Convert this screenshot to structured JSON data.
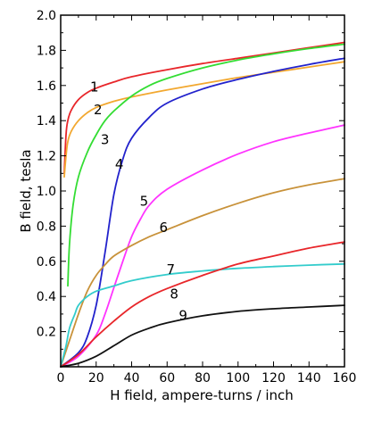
{
  "chart_data": {
    "type": "line",
    "title": "",
    "xlabel": "H field, ampere-turns / inch",
    "ylabel": "B field, tesla",
    "xlim": [
      0,
      160
    ],
    "ylim": [
      0,
      2.0
    ],
    "x_ticks": [
      0,
      20,
      40,
      60,
      80,
      100,
      120,
      140,
      160
    ],
    "x_tick_labels": [
      "0",
      "20",
      "40",
      "60",
      "80",
      "100",
      "120",
      "140",
      "160"
    ],
    "y_ticks": [
      0.2,
      0.4,
      0.6,
      0.8,
      1.0,
      1.2,
      1.4,
      1.6,
      1.8,
      2.0
    ],
    "y_tick_labels": [
      "0.2",
      "0.4",
      "0.6",
      "0.8",
      "1.0",
      "1.2",
      "1.4",
      "1.6",
      "1.8",
      "2.0"
    ],
    "grid": false,
    "legend": "none",
    "series": [
      {
        "label": "1",
        "color": "#e8262a",
        "label_pos": [
          19,
          1.59
        ],
        "points": [
          [
            2,
            1.1
          ],
          [
            3,
            1.32
          ],
          [
            4,
            1.4
          ],
          [
            6,
            1.46
          ],
          [
            10,
            1.52
          ],
          [
            15,
            1.56
          ],
          [
            20,
            1.585
          ],
          [
            30,
            1.62
          ],
          [
            40,
            1.65
          ],
          [
            60,
            1.69
          ],
          [
            80,
            1.725
          ],
          [
            100,
            1.755
          ],
          [
            120,
            1.785
          ],
          [
            140,
            1.815
          ],
          [
            160,
            1.845
          ]
        ]
      },
      {
        "label": "2",
        "color": "#f2a830",
        "label_pos": [
          21,
          1.46
        ],
        "points": [
          [
            2,
            1.08
          ],
          [
            3,
            1.2
          ],
          [
            4,
            1.28
          ],
          [
            6,
            1.34
          ],
          [
            10,
            1.4
          ],
          [
            15,
            1.445
          ],
          [
            20,
            1.475
          ],
          [
            30,
            1.51
          ],
          [
            40,
            1.535
          ],
          [
            60,
            1.575
          ],
          [
            80,
            1.61
          ],
          [
            100,
            1.645
          ],
          [
            120,
            1.675
          ],
          [
            140,
            1.705
          ],
          [
            160,
            1.735
          ]
        ]
      },
      {
        "label": "3",
        "color": "#33dd33",
        "label_pos": [
          25,
          1.29
        ],
        "points": [
          [
            4,
            0.46
          ],
          [
            5,
            0.7
          ],
          [
            7,
            0.92
          ],
          [
            10,
            1.08
          ],
          [
            15,
            1.22
          ],
          [
            20,
            1.32
          ],
          [
            25,
            1.4
          ],
          [
            30,
            1.455
          ],
          [
            40,
            1.54
          ],
          [
            50,
            1.6
          ],
          [
            60,
            1.64
          ],
          [
            80,
            1.7
          ],
          [
            100,
            1.745
          ],
          [
            120,
            1.78
          ],
          [
            140,
            1.81
          ],
          [
            160,
            1.835
          ]
        ]
      },
      {
        "label": "4",
        "color": "#2222cc",
        "label_pos": [
          33,
          1.15
        ],
        "points": [
          [
            0,
            0.0
          ],
          [
            10,
            0.08
          ],
          [
            15,
            0.17
          ],
          [
            20,
            0.35
          ],
          [
            25,
            0.65
          ],
          [
            30,
            0.98
          ],
          [
            35,
            1.18
          ],
          [
            40,
            1.3
          ],
          [
            50,
            1.42
          ],
          [
            60,
            1.5
          ],
          [
            80,
            1.58
          ],
          [
            100,
            1.635
          ],
          [
            120,
            1.68
          ],
          [
            140,
            1.72
          ],
          [
            160,
            1.755
          ]
        ]
      },
      {
        "label": "5",
        "color": "#ff33ff",
        "label_pos": [
          47,
          0.94
        ],
        "points": [
          [
            0,
            0.0
          ],
          [
            10,
            0.06
          ],
          [
            20,
            0.18
          ],
          [
            25,
            0.3
          ],
          [
            30,
            0.45
          ],
          [
            35,
            0.6
          ],
          [
            40,
            0.74
          ],
          [
            45,
            0.84
          ],
          [
            50,
            0.92
          ],
          [
            60,
            1.01
          ],
          [
            80,
            1.12
          ],
          [
            100,
            1.21
          ],
          [
            120,
            1.28
          ],
          [
            140,
            1.33
          ],
          [
            160,
            1.375
          ]
        ]
      },
      {
        "label": "6",
        "color": "#c8923a",
        "label_pos": [
          58,
          0.79
        ],
        "points": [
          [
            0,
            0.0
          ],
          [
            5,
            0.15
          ],
          [
            10,
            0.3
          ],
          [
            15,
            0.43
          ],
          [
            20,
            0.52
          ],
          [
            25,
            0.58
          ],
          [
            30,
            0.63
          ],
          [
            40,
            0.69
          ],
          [
            50,
            0.74
          ],
          [
            60,
            0.78
          ],
          [
            80,
            0.86
          ],
          [
            100,
            0.93
          ],
          [
            120,
            0.99
          ],
          [
            140,
            1.035
          ],
          [
            160,
            1.07
          ]
        ]
      },
      {
        "label": "7",
        "color": "#33cccc",
        "label_pos": [
          62,
          0.55
        ],
        "points": [
          [
            0,
            0.0
          ],
          [
            3,
            0.12
          ],
          [
            5,
            0.22
          ],
          [
            8,
            0.3
          ],
          [
            10,
            0.35
          ],
          [
            15,
            0.4
          ],
          [
            20,
            0.43
          ],
          [
            30,
            0.46
          ],
          [
            40,
            0.49
          ],
          [
            60,
            0.525
          ],
          [
            80,
            0.545
          ],
          [
            100,
            0.56
          ],
          [
            120,
            0.57
          ],
          [
            140,
            0.578
          ],
          [
            160,
            0.585
          ]
        ]
      },
      {
        "label": "8",
        "color": "#e8262a",
        "label_pos": [
          64,
          0.41
        ],
        "points": [
          [
            0,
            0.0
          ],
          [
            10,
            0.07
          ],
          [
            20,
            0.17
          ],
          [
            30,
            0.26
          ],
          [
            40,
            0.34
          ],
          [
            50,
            0.4
          ],
          [
            60,
            0.445
          ],
          [
            80,
            0.52
          ],
          [
            100,
            0.585
          ],
          [
            120,
            0.63
          ],
          [
            140,
            0.675
          ],
          [
            160,
            0.71
          ]
        ]
      },
      {
        "label": "9",
        "color": "#111111",
        "label_pos": [
          69,
          0.29
        ],
        "points": [
          [
            0,
            0.0
          ],
          [
            10,
            0.02
          ],
          [
            20,
            0.06
          ],
          [
            30,
            0.12
          ],
          [
            40,
            0.18
          ],
          [
            50,
            0.22
          ],
          [
            60,
            0.25
          ],
          [
            80,
            0.29
          ],
          [
            100,
            0.315
          ],
          [
            120,
            0.33
          ],
          [
            140,
            0.34
          ],
          [
            160,
            0.35
          ]
        ]
      }
    ]
  }
}
